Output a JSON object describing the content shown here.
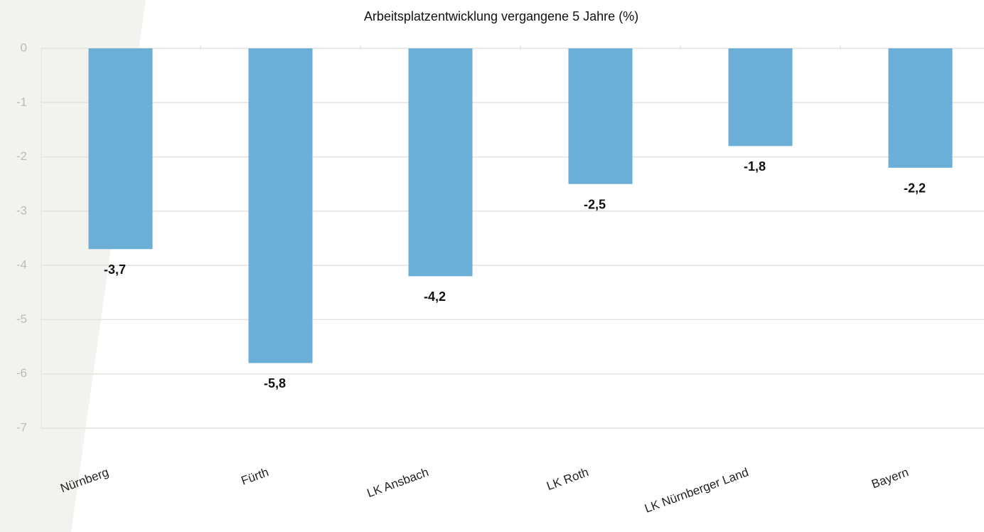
{
  "chart_data": {
    "type": "bar",
    "title": "Arbeitsplatzentwicklung vergangene 5 Jahre (%)",
    "categories": [
      "Nürnberg",
      "Fürth",
      "LK Ansbach",
      "LK Roth",
      "LK Nürnberger Land",
      "Bayern"
    ],
    "values": [
      -3.7,
      -5.8,
      -4.2,
      -2.5,
      -1.8,
      -2.2
    ],
    "value_labels": [
      "-3,7",
      "-5,8",
      "-4,2",
      "-2,5",
      "-1,8",
      "-2,2"
    ],
    "color": "#6baed6",
    "ylim": [
      -7,
      0
    ],
    "yticks": [
      0,
      -1,
      -2,
      -3,
      -4,
      -5,
      -6,
      -7
    ],
    "grid": true
  }
}
